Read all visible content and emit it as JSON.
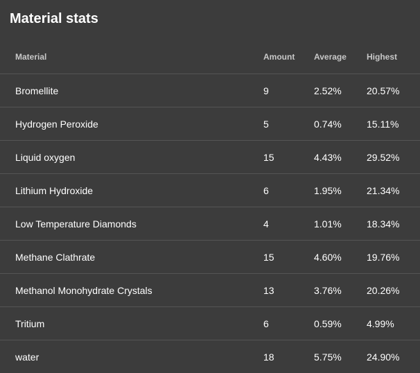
{
  "panel": {
    "title": "Material stats"
  },
  "table": {
    "headers": {
      "material": "Material",
      "amount": "Amount",
      "average": "Average",
      "highest": "Highest"
    },
    "rows": [
      {
        "material": "Bromellite",
        "amount": "9",
        "average": "2.52%",
        "highest": "20.57%"
      },
      {
        "material": "Hydrogen Peroxide",
        "amount": "5",
        "average": "0.74%",
        "highest": "15.11%"
      },
      {
        "material": "Liquid oxygen",
        "amount": "15",
        "average": "4.43%",
        "highest": "29.52%"
      },
      {
        "material": "Lithium Hydroxide",
        "amount": "6",
        "average": "1.95%",
        "highest": "21.34%"
      },
      {
        "material": "Low Temperature Diamonds",
        "amount": "4",
        "average": "1.01%",
        "highest": "18.34%"
      },
      {
        "material": "Methane Clathrate",
        "amount": "15",
        "average": "4.60%",
        "highest": "19.76%"
      },
      {
        "material": "Methanol Monohydrate Crystals",
        "amount": "13",
        "average": "3.76%",
        "highest": "20.26%"
      },
      {
        "material": "Tritium",
        "amount": "6",
        "average": "0.59%",
        "highest": "4.99%"
      },
      {
        "material": "water",
        "amount": "18",
        "average": "5.75%",
        "highest": "24.90%"
      }
    ]
  }
}
